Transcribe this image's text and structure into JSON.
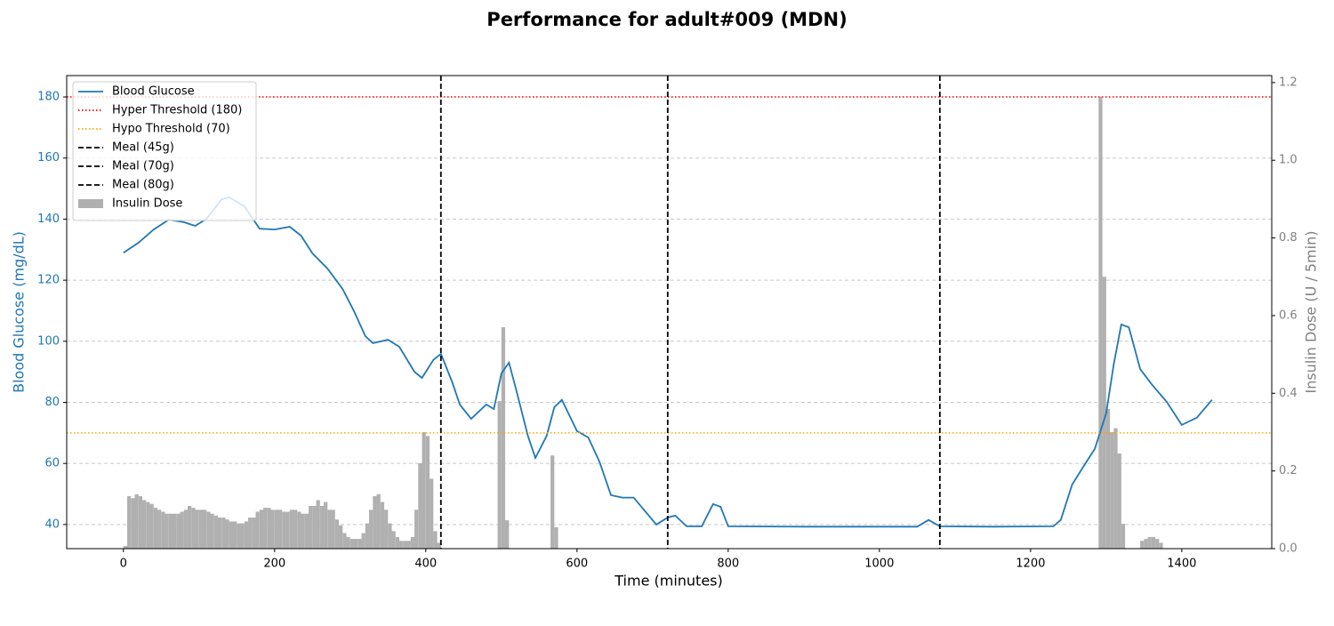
{
  "chart_data": {
    "type": "line",
    "title": "Performance for adult#009 (MDN)",
    "xlabel": "Time (minutes)",
    "ylabel": "Blood Glucose (mg/dL)",
    "y2label": "Insulin Dose (U / 5min)",
    "xlim": [
      -75,
      1519
    ],
    "ylim": [
      32.1,
      187.0
    ],
    "y2lim": [
      0,
      1.218
    ],
    "xticks": [
      0,
      200,
      400,
      600,
      800,
      1000,
      1200,
      1400
    ],
    "yticks": [
      40,
      60,
      80,
      100,
      120,
      140,
      160,
      180
    ],
    "y2ticks": [
      {
        "value": 0,
        "label": "0.0"
      },
      0.2,
      0.4,
      0.6,
      0.8,
      {
        "value": 1,
        "label": "1.0"
      },
      1.2
    ],
    "grid": true,
    "legend": "upper left",
    "series": [
      {
        "name": "Blood Glucose",
        "type": "line",
        "color": "#1f77b4",
        "x": [
          0,
          20,
          40,
          60,
          80,
          95,
          110,
          130,
          140,
          160,
          180,
          200,
          220,
          235,
          250,
          270,
          290,
          305,
          320,
          330,
          350,
          365,
          385,
          395,
          410,
          420,
          435,
          445,
          460,
          480,
          490,
          500,
          510,
          520,
          535,
          545,
          560,
          570,
          580,
          600,
          615,
          630,
          645,
          660,
          675,
          690,
          705,
          720,
          730,
          745,
          765,
          780,
          790,
          800,
          900,
          1000,
          1050,
          1065,
          1080,
          1150,
          1230,
          1240,
          1255,
          1270,
          1285,
          1300,
          1310,
          1320,
          1330,
          1345,
          1360,
          1380,
          1400,
          1420,
          1440
        ],
        "values": [
          129,
          132.3,
          136.6,
          139.8,
          139,
          137.8,
          140.1,
          146.5,
          147.1,
          144.2,
          136.9,
          136.6,
          137.5,
          134.6,
          128.8,
          123.8,
          117.1,
          109.9,
          101.7,
          99.4,
          100.5,
          98.2,
          90,
          88,
          93.9,
          95.9,
          86.6,
          79.3,
          74.6,
          79.3,
          77.8,
          89.5,
          93,
          83.7,
          69.1,
          61.8,
          69.1,
          78.4,
          80.8,
          70.6,
          68.5,
          60.4,
          49.6,
          48.8,
          48.8,
          44.4,
          40,
          42.3,
          42.9,
          39.4,
          39.4,
          46.7,
          45.8,
          39.4,
          39.3,
          39.3,
          39.3,
          41.5,
          39.4,
          39.3,
          39.4,
          41.5,
          53.1,
          59,
          64.8,
          76.4,
          92.4,
          105.5,
          104.6,
          90.9,
          86,
          80.2,
          72.6,
          75,
          80.8
        ]
      },
      {
        "name": "Insulin Dose",
        "type": "bar",
        "axis": "y2",
        "color": "#b0b0b0",
        "x": [
          0,
          5,
          10,
          15,
          20,
          25,
          30,
          35,
          40,
          45,
          50,
          55,
          60,
          65,
          70,
          75,
          80,
          85,
          90,
          95,
          100,
          105,
          110,
          115,
          120,
          125,
          130,
          135,
          140,
          145,
          150,
          155,
          160,
          165,
          170,
          175,
          180,
          185,
          190,
          195,
          200,
          205,
          210,
          215,
          220,
          225,
          230,
          235,
          240,
          245,
          250,
          255,
          260,
          265,
          270,
          275,
          280,
          285,
          290,
          295,
          300,
          305,
          310,
          315,
          320,
          325,
          330,
          335,
          340,
          345,
          350,
          355,
          360,
          365,
          370,
          375,
          380,
          385,
          390,
          395,
          400,
          405,
          410,
          415,
          495,
          500,
          505,
          565,
          570,
          1290,
          1295,
          1300,
          1305,
          1310,
          1315,
          1320,
          1345,
          1350,
          1355,
          1360,
          1365,
          1370
        ],
        "values": [
          0.007,
          0.135,
          0.13,
          0.14,
          0.135,
          0.125,
          0.12,
          0.115,
          0.105,
          0.1,
          0.095,
          0.09,
          0.09,
          0.09,
          0.09,
          0.095,
          0.1,
          0.11,
          0.105,
          0.1,
          0.1,
          0.1,
          0.095,
          0.09,
          0.085,
          0.08,
          0.08,
          0.075,
          0.07,
          0.07,
          0.065,
          0.065,
          0.07,
          0.08,
          0.08,
          0.095,
          0.1,
          0.105,
          0.105,
          0.1,
          0.1,
          0.1,
          0.095,
          0.095,
          0.1,
          0.1,
          0.095,
          0.09,
          0.09,
          0.11,
          0.11,
          0.125,
          0.11,
          0.12,
          0.1,
          0.1,
          0.075,
          0.06,
          0.04,
          0.03,
          0.025,
          0.025,
          0.025,
          0.04,
          0.065,
          0.1,
          0.135,
          0.14,
          0.12,
          0.1,
          0.065,
          0.045,
          0.03,
          0.02,
          0.02,
          0.02,
          0.03,
          0.1,
          0.22,
          0.3,
          0.29,
          0.18,
          0.045,
          0.015,
          0.38,
          0.57,
          0.073,
          0.24,
          0.055,
          1.163,
          0.7,
          0.36,
          0.3,
          0.31,
          0.245,
          0.064,
          0.02,
          0.025,
          0.03,
          0.03,
          0.025,
          0.015
        ]
      }
    ],
    "hlines": [
      {
        "name": "Hyper Threshold (180)",
        "value": 180,
        "color": "red"
      },
      {
        "name": "Hypo Threshold (70)",
        "value": 70,
        "color": "orange"
      }
    ],
    "vlines": [
      {
        "name": "Meal (45g)",
        "x": 420,
        "color": "black"
      },
      {
        "name": "Meal (70g)",
        "x": 720,
        "color": "black"
      },
      {
        "name": "Meal (80g)",
        "x": 1080,
        "color": "black"
      }
    ]
  }
}
